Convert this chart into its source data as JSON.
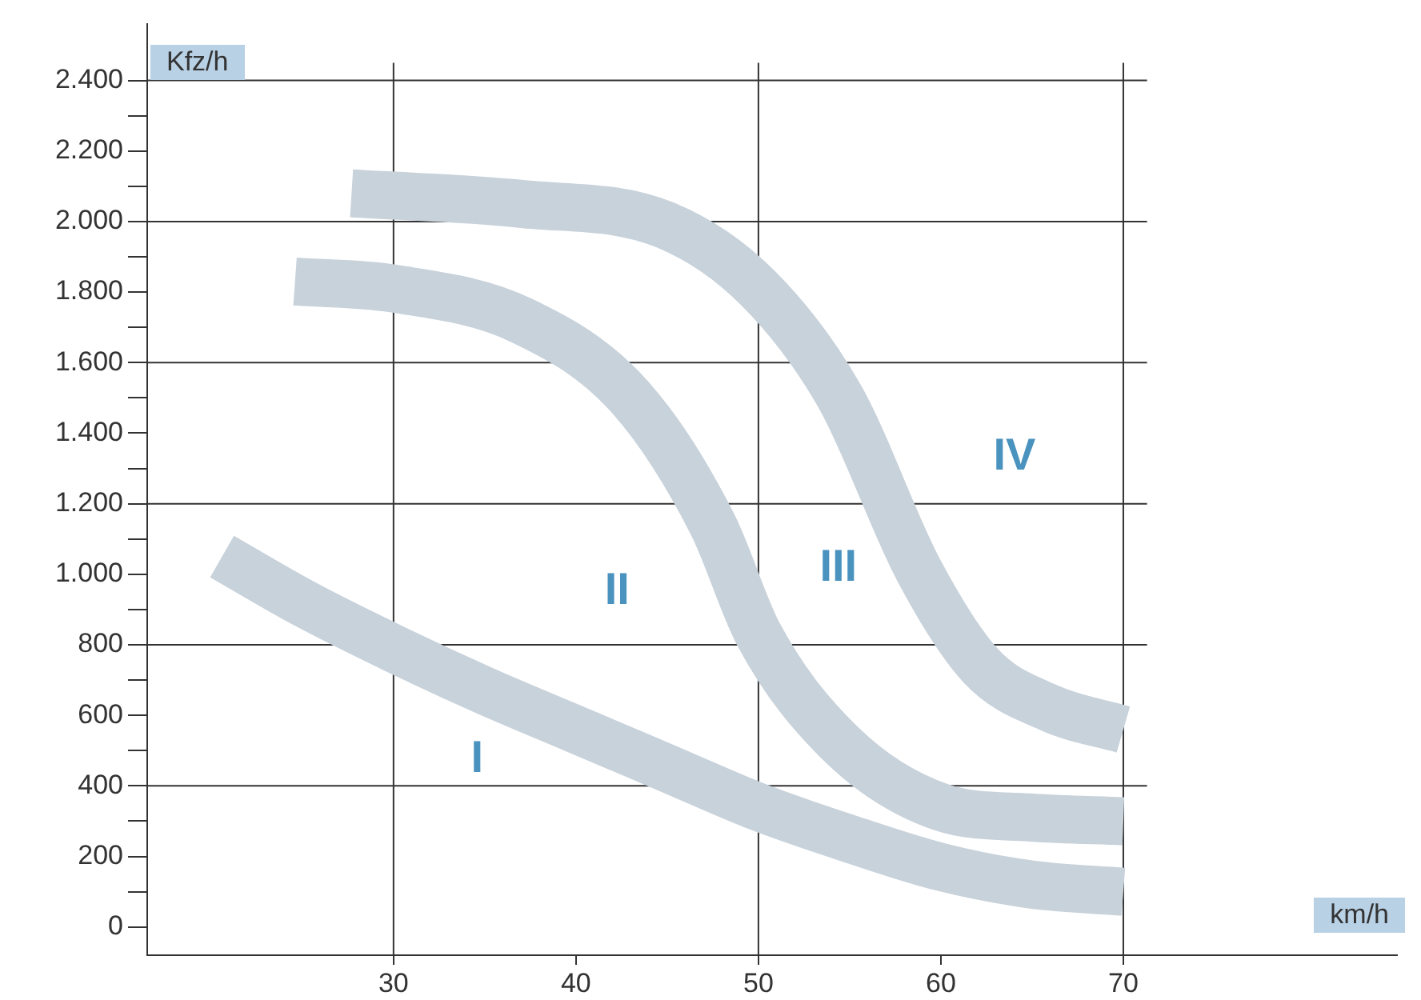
{
  "chart_data": {
    "type": "line",
    "xlabel": "km/h",
    "ylabel": "Kfz/h",
    "xlim": [
      16.5,
      85
    ],
    "ylim": [
      -80,
      2560
    ],
    "xticks": [
      30,
      40,
      50,
      60,
      70
    ],
    "yticks": [
      0,
      {
        "value": 100,
        "label": null
      },
      {
        "value": 200,
        "label": "200"
      },
      {
        "value": 300,
        "label": null
      },
      {
        "value": 400,
        "label": "400"
      },
      {
        "value": 500,
        "label": null
      },
      {
        "value": 600,
        "label": "600"
      },
      {
        "value": 700,
        "label": null
      },
      {
        "value": 800,
        "label": "800"
      },
      {
        "value": 900,
        "label": null
      },
      {
        "value": 1000,
        "label": "1.000"
      },
      {
        "value": 1100,
        "label": null
      },
      {
        "value": 1200,
        "label": "1.200"
      },
      {
        "value": 1300,
        "label": null
      },
      {
        "value": 1400,
        "label": "1.400"
      },
      {
        "value": 1500,
        "label": null
      },
      {
        "value": 1600,
        "label": "1.600"
      },
      {
        "value": 1700,
        "label": null
      },
      {
        "value": 1800,
        "label": "1.800"
      },
      {
        "value": 1900,
        "label": null
      },
      {
        "value": 2000,
        "label": "2.000"
      },
      {
        "value": 2100,
        "label": null
      },
      {
        "value": 2200,
        "label": "2.200"
      },
      {
        "value": 2300,
        "label": null
      },
      {
        "value": 2400,
        "label": "2.400"
      }
    ],
    "series": [
      {
        "color": "#c8d2db",
        "x": [
          20.6,
          25,
          30,
          35,
          40,
          45,
          50,
          55,
          60,
          65,
          70
        ],
        "values": [
          1050,
          920,
          790,
          670,
          560,
          450,
          340,
          250,
          170,
          120,
          100
        ]
      },
      {
        "color": "#c8d2db",
        "x": [
          24.6,
          30,
          37,
          43,
          47.5,
          50,
          54.5,
          60,
          65,
          70
        ],
        "values": [
          1830,
          1810,
          1720,
          1500,
          1140,
          830,
          520,
          340,
          310,
          300
        ]
      },
      {
        "color": "#c8d2db",
        "x": [
          27.7,
          37,
          44.9,
          50,
          54.5,
          58.8,
          62.2,
          66,
          70
        ],
        "values": [
          2080,
          2050,
          1990,
          1810,
          1500,
          1010,
          740,
          620,
          560
        ]
      }
    ],
    "marker": "none",
    "line_style": "solid",
    "legend": false,
    "ref_lines": [
      {
        "axis": "y",
        "value": 400,
        "color": "#333333"
      },
      {
        "axis": "y",
        "value": 800,
        "color": "#333333"
      },
      {
        "axis": "y",
        "value": 1200,
        "color": "#333333"
      },
      {
        "axis": "y",
        "value": 1600,
        "color": "#333333"
      },
      {
        "axis": "y",
        "value": 2000,
        "color": "#333333"
      },
      {
        "axis": "y",
        "value": 2400,
        "color": "#333333"
      },
      {
        "axis": "x",
        "value": 30,
        "color": "#333333"
      },
      {
        "axis": "x",
        "value": 50,
        "color": "#333333"
      },
      {
        "axis": "x",
        "value": 70,
        "color": "#333333"
      }
    ],
    "annotations": [
      "I",
      "II",
      "III",
      "IV"
    ]
  }
}
